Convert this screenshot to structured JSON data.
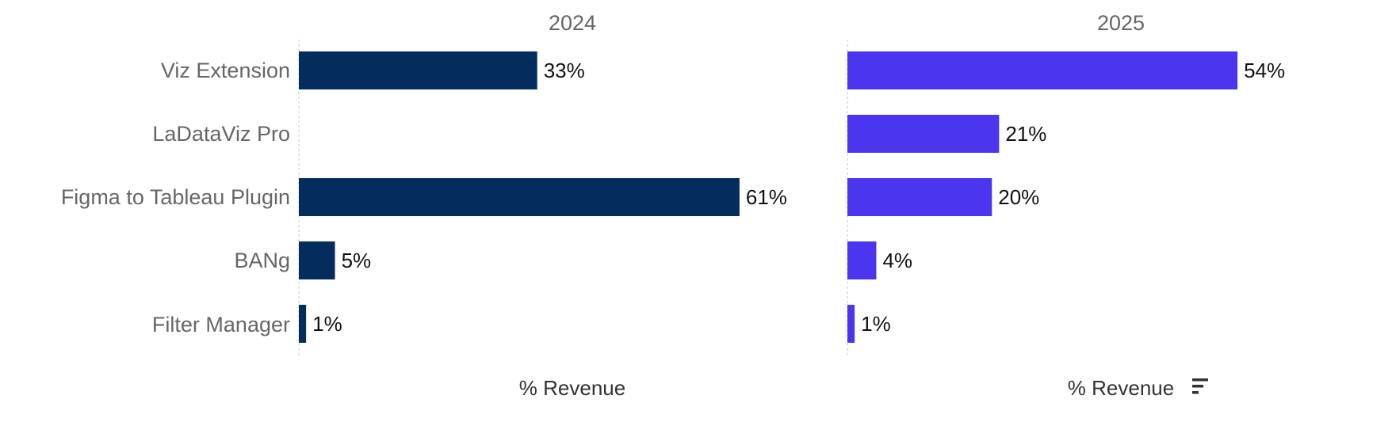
{
  "chart_data": {
    "type": "bar",
    "orientation": "horizontal",
    "categories": [
      "Viz Extension",
      "LaDataViz Pro",
      "Figma to Tableau Plugin",
      "BANg",
      "Filter Manager"
    ],
    "xlabel": "% Revenue",
    "xlim": [
      0,
      62
    ],
    "panels": [
      {
        "name": "2024",
        "color": "#042d5e",
        "values": [
          33,
          null,
          61,
          5,
          1
        ],
        "labels": [
          "33%",
          "",
          "61%",
          "5%",
          "1%"
        ],
        "xlabel": "% Revenue",
        "sort_icon": false
      },
      {
        "name": "2025",
        "color": "#4b35ee",
        "values": [
          54,
          21,
          20,
          4,
          1
        ],
        "labels": [
          "54%",
          "21%",
          "20%",
          "4%",
          "1%"
        ],
        "xlabel": "% Revenue",
        "sort_icon": true
      }
    ]
  }
}
